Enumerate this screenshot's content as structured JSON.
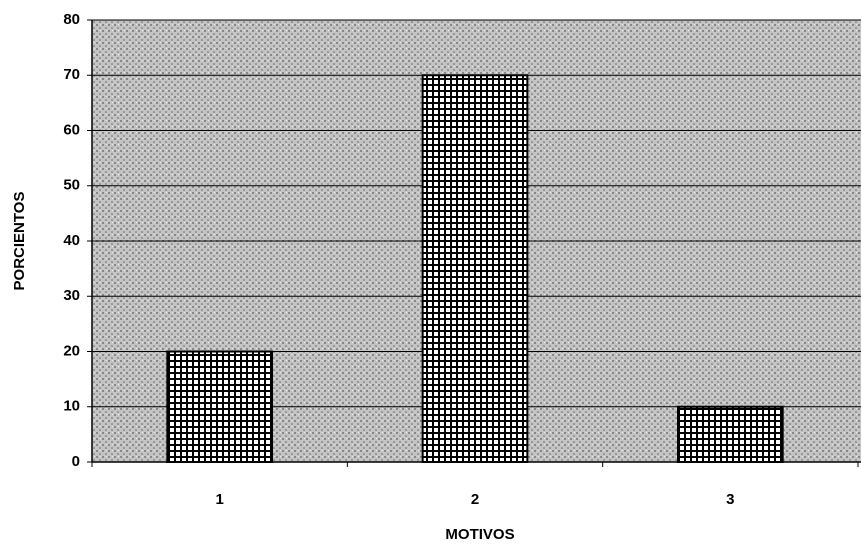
{
  "chart_data": {
    "type": "bar",
    "x_label": "MOTIVOS",
    "y_label": "PORCIENTOS",
    "categories": [
      "1",
      "2",
      "3"
    ],
    "values": [
      20,
      70,
      10
    ],
    "color": "#000000",
    "ylim": [
      0,
      80
    ],
    "yticks": [
      0,
      10,
      20,
      30,
      40,
      50,
      60,
      70,
      80
    ],
    "grid": true
  }
}
